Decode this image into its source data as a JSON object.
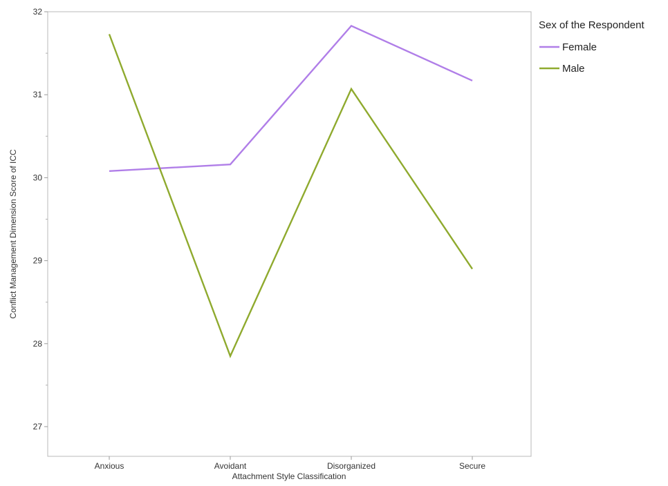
{
  "chart_data": {
    "type": "line",
    "title": "",
    "xlabel": "Attachment Style Classification",
    "ylabel": "Conflict Management Dimension Score of ICC",
    "categories": [
      "Anxious",
      "Avoidant",
      "Disorganized",
      "Secure"
    ],
    "ylim": [
      26.7,
      32
    ],
    "yticks": [
      27,
      28,
      29,
      30,
      31,
      32
    ],
    "grid": false,
    "legend": {
      "title": "Sex of the Respondent",
      "placement": "right"
    },
    "series": [
      {
        "name": "Female",
        "color": "#b07ee8",
        "values": [
          30.08,
          30.16,
          31.83,
          31.17
        ]
      },
      {
        "name": "Male",
        "color": "#8faa2e",
        "values": [
          31.73,
          27.85,
          31.07,
          28.9
        ]
      }
    ]
  }
}
